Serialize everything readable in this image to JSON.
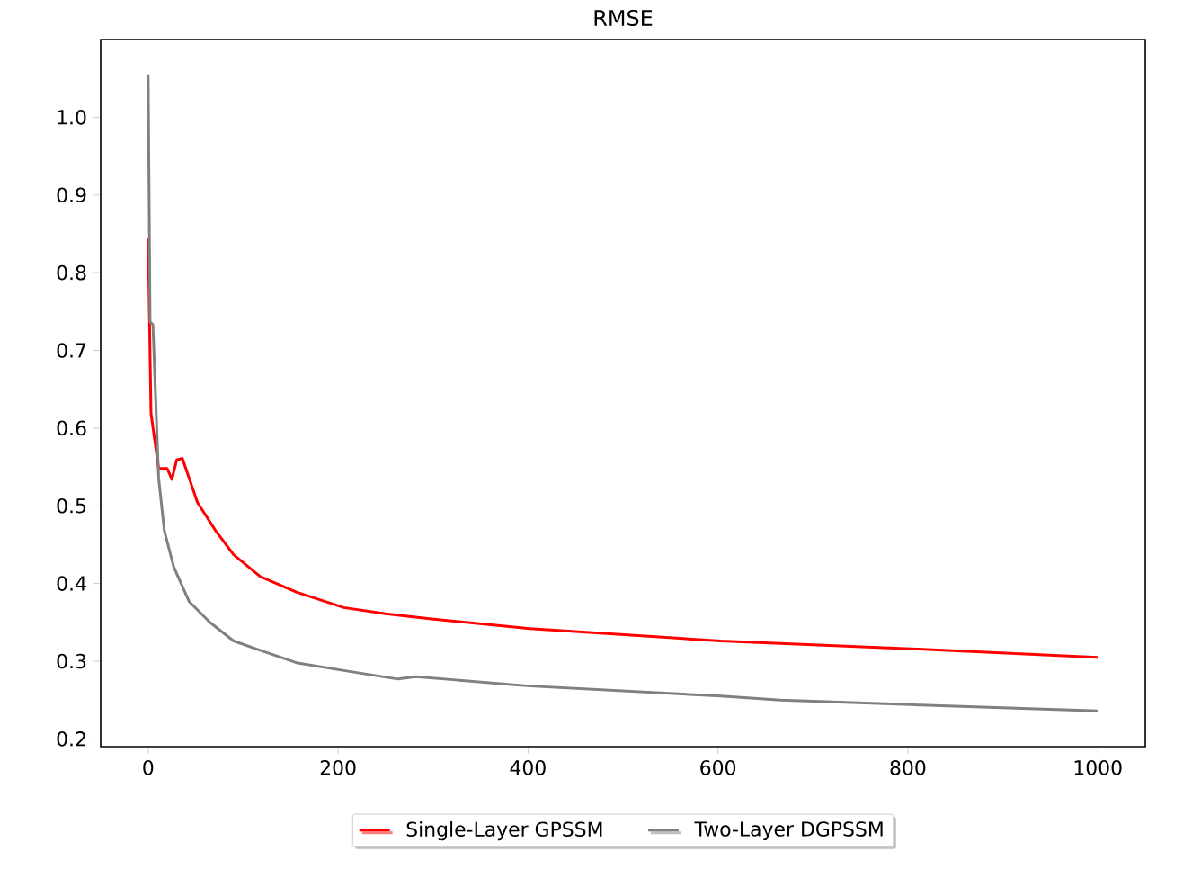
{
  "chart_data": {
    "type": "line",
    "title": "RMSE",
    "x": [
      0,
      3,
      11,
      20,
      25,
      30,
      36,
      52,
      71,
      90,
      118,
      156,
      206,
      250,
      294,
      402,
      603,
      803,
      1000
    ],
    "xlim": [
      -50,
      1050
    ],
    "ylim": [
      0.19,
      1.1
    ],
    "xticks": [
      0,
      200,
      400,
      600,
      800,
      1000
    ],
    "yticks": [
      0.2,
      0.3,
      0.4,
      0.5,
      0.6,
      0.7,
      0.8,
      0.9,
      {
        "value": 1.0,
        "label": "1.0"
      }
    ],
    "legend": "bottom",
    "series": [
      {
        "name": "Single-Layer GPSSM",
        "color": "#ff0000",
        "values": [
          0.844,
          0.619,
          0.548,
          0.548,
          0.534,
          0.559,
          0.561,
          0.504,
          0.468,
          0.437,
          0.409,
          0.389,
          0.369,
          0.361,
          0.355,
          0.342,
          0.326,
          0.316,
          0.305
        ]
      },
      {
        "name": "Two-Layer DGPSSM",
        "color": "#808080",
        "x": [
          0,
          2,
          5,
          11,
          17,
          27,
          43,
          65,
          90,
          118,
          156,
          206,
          263,
          282,
          402,
          603,
          666,
          803,
          1000
        ],
        "values": [
          1.055,
          0.737,
          0.733,
          0.536,
          0.468,
          0.421,
          0.377,
          0.35,
          0.326,
          0.314,
          0.298,
          0.288,
          0.277,
          0.28,
          0.268,
          0.255,
          0.25,
          0.244,
          0.236
        ]
      }
    ]
  }
}
